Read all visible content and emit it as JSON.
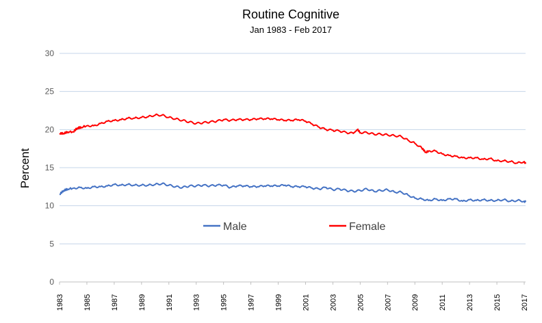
{
  "chart_data": {
    "type": "line",
    "title": "Routine Cognitive",
    "subtitle": "Jan 1983 - Feb 2017",
    "xlabel": "",
    "ylabel": "Percent",
    "ylim": [
      0,
      30
    ],
    "yticks": [
      "0",
      "5",
      "10",
      "15",
      "20",
      "25",
      "30"
    ],
    "xlim": [
      1983,
      2017.1
    ],
    "xticks": [
      "1983",
      "1985",
      "1987",
      "1989",
      "1991",
      "1993",
      "1995",
      "1997",
      "1999",
      "2001",
      "2003",
      "2005",
      "2007",
      "2009",
      "2011",
      "2013",
      "2015",
      "2017"
    ],
    "grid": true,
    "legend_position": "center",
    "series": [
      {
        "name": "Male",
        "color": "#4472c4",
        "points": [
          [
            1983.0,
            11.5
          ],
          [
            1983.3,
            12.0
          ],
          [
            1983.6,
            12.2
          ],
          [
            1984.0,
            12.3
          ],
          [
            1984.5,
            12.4
          ],
          [
            1985.0,
            12.3
          ],
          [
            1985.5,
            12.5
          ],
          [
            1986.0,
            12.5
          ],
          [
            1986.5,
            12.6
          ],
          [
            1987.0,
            12.8
          ],
          [
            1987.5,
            12.7
          ],
          [
            1988.0,
            12.8
          ],
          [
            1988.5,
            12.7
          ],
          [
            1989.0,
            12.7
          ],
          [
            1989.5,
            12.7
          ],
          [
            1990.0,
            12.8
          ],
          [
            1990.5,
            12.9
          ],
          [
            1991.0,
            12.7
          ],
          [
            1991.5,
            12.5
          ],
          [
            1992.0,
            12.4
          ],
          [
            1992.5,
            12.6
          ],
          [
            1993.0,
            12.6
          ],
          [
            1993.5,
            12.7
          ],
          [
            1994.0,
            12.6
          ],
          [
            1994.5,
            12.7
          ],
          [
            1995.0,
            12.7
          ],
          [
            1995.5,
            12.4
          ],
          [
            1996.0,
            12.6
          ],
          [
            1996.5,
            12.6
          ],
          [
            1997.0,
            12.5
          ],
          [
            1997.5,
            12.5
          ],
          [
            1998.0,
            12.6
          ],
          [
            1998.5,
            12.6
          ],
          [
            1999.0,
            12.6
          ],
          [
            1999.5,
            12.7
          ],
          [
            2000.0,
            12.5
          ],
          [
            2000.5,
            12.5
          ],
          [
            2001.0,
            12.5
          ],
          [
            2001.5,
            12.3
          ],
          [
            2002.0,
            12.2
          ],
          [
            2002.5,
            12.4
          ],
          [
            2003.0,
            12.1
          ],
          [
            2003.5,
            12.2
          ],
          [
            2004.0,
            12.0
          ],
          [
            2004.5,
            11.9
          ],
          [
            2005.0,
            12.0
          ],
          [
            2005.5,
            12.2
          ],
          [
            2006.0,
            11.9
          ],
          [
            2006.5,
            12.0
          ],
          [
            2007.0,
            12.1
          ],
          [
            2007.5,
            11.8
          ],
          [
            2008.0,
            11.8
          ],
          [
            2008.5,
            11.4
          ],
          [
            2009.0,
            11.0
          ],
          [
            2009.5,
            10.9
          ],
          [
            2010.0,
            10.7
          ],
          [
            2010.5,
            10.9
          ],
          [
            2011.0,
            10.7
          ],
          [
            2011.5,
            10.9
          ],
          [
            2012.0,
            10.9
          ],
          [
            2012.5,
            10.6
          ],
          [
            2013.0,
            10.8
          ],
          [
            2013.5,
            10.7
          ],
          [
            2014.0,
            10.8
          ],
          [
            2014.5,
            10.7
          ],
          [
            2015.0,
            10.7
          ],
          [
            2015.5,
            10.8
          ],
          [
            2016.0,
            10.6
          ],
          [
            2016.5,
            10.7
          ],
          [
            2017.0,
            10.6
          ],
          [
            2017.1,
            10.5
          ]
        ]
      },
      {
        "name": "Female",
        "color": "#ff0000",
        "points": [
          [
            1983.0,
            19.5
          ],
          [
            1983.3,
            19.5
          ],
          [
            1983.6,
            19.7
          ],
          [
            1984.0,
            19.7
          ],
          [
            1984.3,
            20.2
          ],
          [
            1984.6,
            20.3
          ],
          [
            1985.0,
            20.5
          ],
          [
            1985.5,
            20.5
          ],
          [
            1986.0,
            20.8
          ],
          [
            1986.5,
            21.1
          ],
          [
            1987.0,
            21.2
          ],
          [
            1987.5,
            21.3
          ],
          [
            1988.0,
            21.5
          ],
          [
            1988.5,
            21.5
          ],
          [
            1989.0,
            21.6
          ],
          [
            1989.5,
            21.7
          ],
          [
            1990.0,
            21.9
          ],
          [
            1990.5,
            21.9
          ],
          [
            1991.0,
            21.6
          ],
          [
            1991.5,
            21.4
          ],
          [
            1992.0,
            21.2
          ],
          [
            1992.5,
            21.0
          ],
          [
            1993.0,
            20.8
          ],
          [
            1993.5,
            20.9
          ],
          [
            1994.0,
            21.0
          ],
          [
            1994.5,
            21.1
          ],
          [
            1995.0,
            21.3
          ],
          [
            1995.5,
            21.2
          ],
          [
            1996.0,
            21.3
          ],
          [
            1996.5,
            21.3
          ],
          [
            1997.0,
            21.3
          ],
          [
            1997.5,
            21.4
          ],
          [
            1998.0,
            21.4
          ],
          [
            1998.5,
            21.4
          ],
          [
            1999.0,
            21.3
          ],
          [
            1999.5,
            21.2
          ],
          [
            2000.0,
            21.2
          ],
          [
            2000.5,
            21.3
          ],
          [
            2001.0,
            21.1
          ],
          [
            2001.5,
            20.7
          ],
          [
            2002.0,
            20.3
          ],
          [
            2002.5,
            20.0
          ],
          [
            2003.0,
            19.9
          ],
          [
            2003.5,
            19.8
          ],
          [
            2004.0,
            19.6
          ],
          [
            2004.5,
            19.5
          ],
          [
            2004.8,
            20.0
          ],
          [
            2005.0,
            19.6
          ],
          [
            2005.5,
            19.6
          ],
          [
            2006.0,
            19.4
          ],
          [
            2006.5,
            19.4
          ],
          [
            2007.0,
            19.3
          ],
          [
            2007.5,
            19.2
          ],
          [
            2008.0,
            19.1
          ],
          [
            2008.5,
            18.6
          ],
          [
            2009.0,
            18.2
          ],
          [
            2009.5,
            17.6
          ],
          [
            2009.8,
            17.0
          ],
          [
            2010.0,
            17.2
          ],
          [
            2010.5,
            17.2
          ],
          [
            2011.0,
            16.8
          ],
          [
            2011.5,
            16.6
          ],
          [
            2012.0,
            16.5
          ],
          [
            2012.5,
            16.3
          ],
          [
            2013.0,
            16.3
          ],
          [
            2013.5,
            16.3
          ],
          [
            2014.0,
            16.1
          ],
          [
            2014.5,
            16.2
          ],
          [
            2015.0,
            15.9
          ],
          [
            2015.5,
            15.9
          ],
          [
            2016.0,
            15.8
          ],
          [
            2016.5,
            15.6
          ],
          [
            2017.0,
            15.8
          ],
          [
            2017.1,
            15.5
          ]
        ]
      }
    ]
  }
}
